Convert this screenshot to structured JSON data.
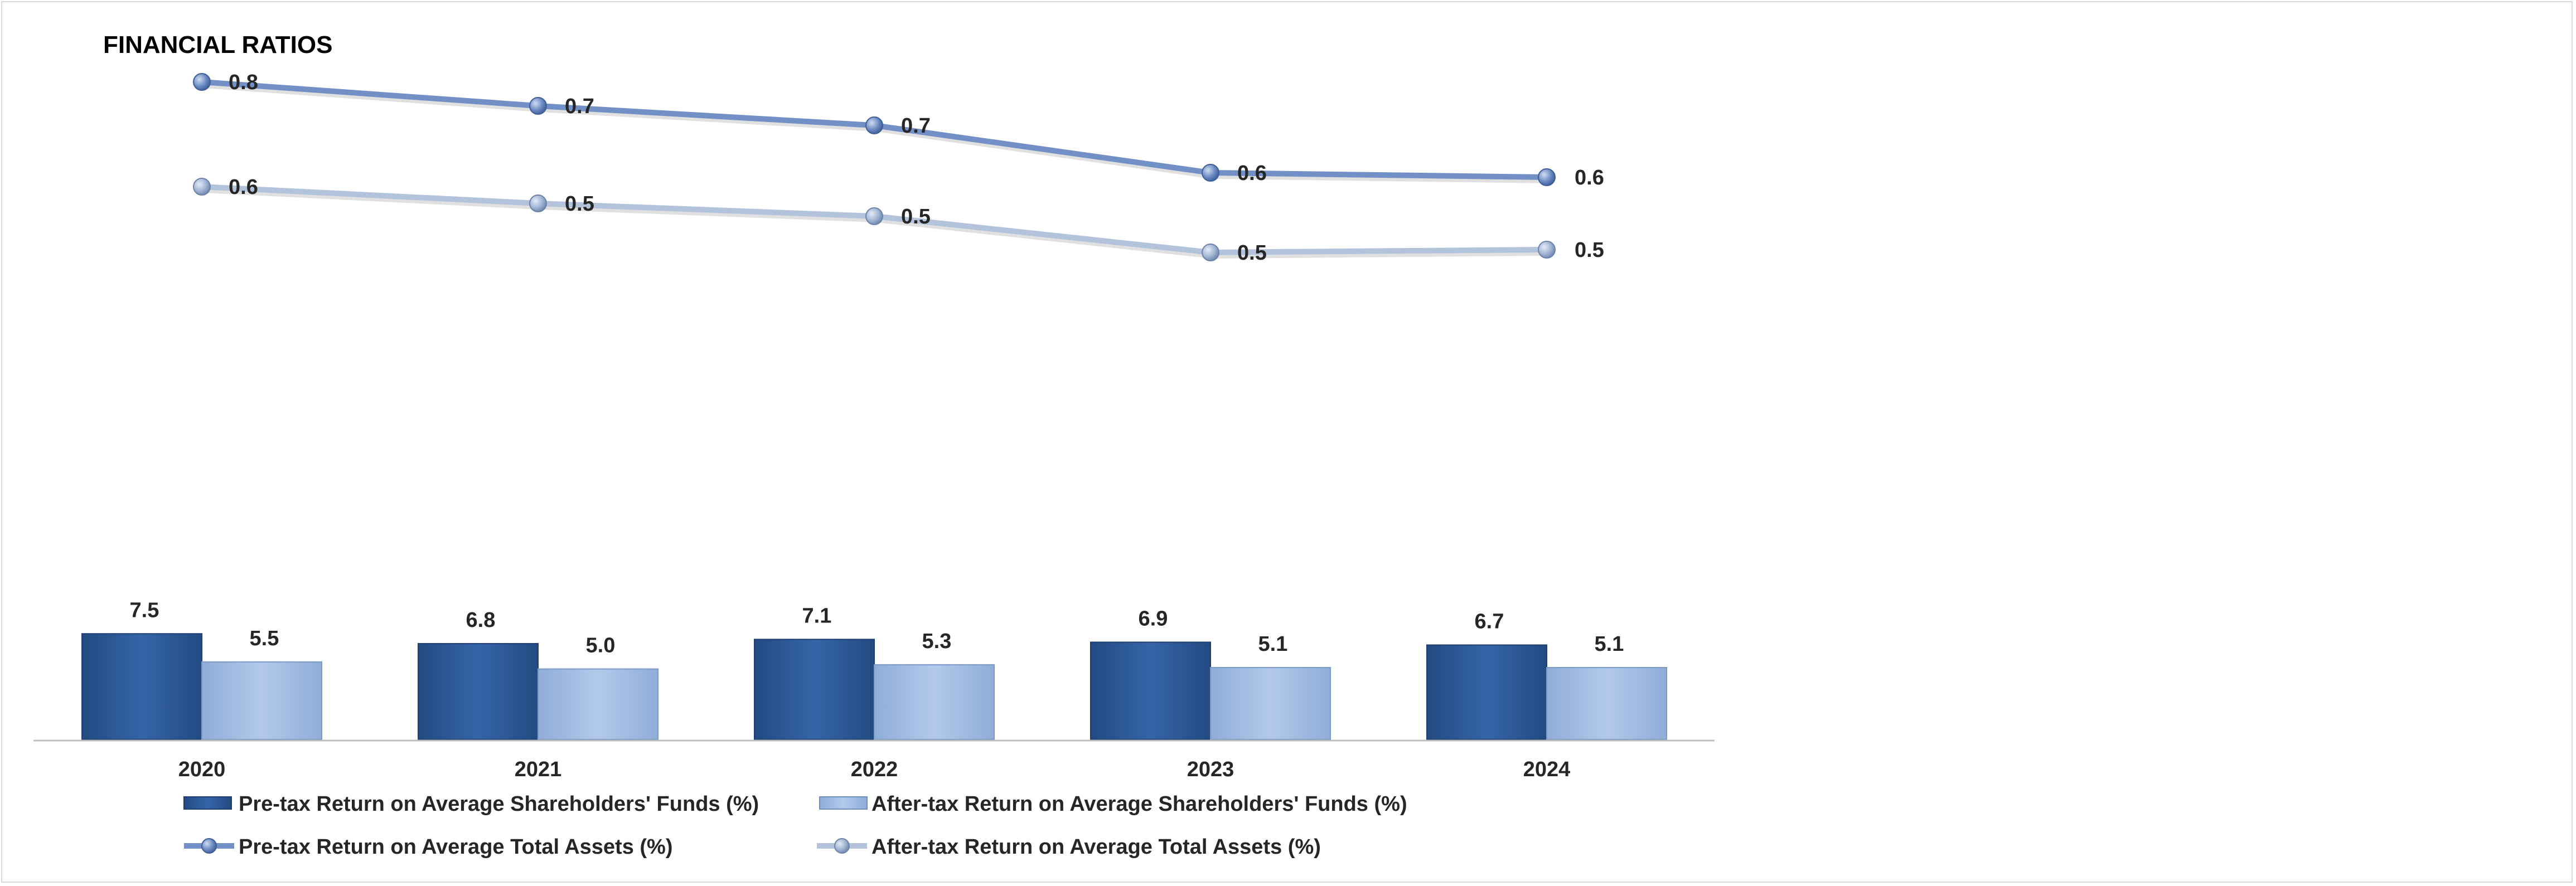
{
  "chart_data": {
    "type": "bar",
    "title": "FINANCIAL RATIOS",
    "categories": [
      "2020",
      "2021",
      "2022",
      "2023",
      "2024"
    ],
    "series": [
      {
        "name": "Pre-tax Return on Average Shareholders' Funds (%)",
        "type": "bar",
        "values": [
          7.5,
          6.8,
          7.1,
          6.9,
          6.7
        ],
        "color": "#2e5c9a"
      },
      {
        "name": "After-tax Return on Average Shareholders' Funds (%)",
        "type": "bar",
        "values": [
          5.5,
          5.0,
          5.3,
          5.1,
          5.1
        ],
        "color": "#a5bfe2"
      },
      {
        "name": "Pre-tax Return on Average Total Assets (%)",
        "type": "line",
        "values": [
          0.8,
          0.7,
          0.7,
          0.6,
          0.6
        ],
        "color": "#7290c6"
      },
      {
        "name": "After-tax Return on Average  Total Assets (%)",
        "type": "line",
        "values": [
          0.6,
          0.5,
          0.5,
          0.5,
          0.5
        ],
        "color": "#b3c3dc"
      }
    ],
    "grid": false,
    "legend_position": "bottom"
  }
}
